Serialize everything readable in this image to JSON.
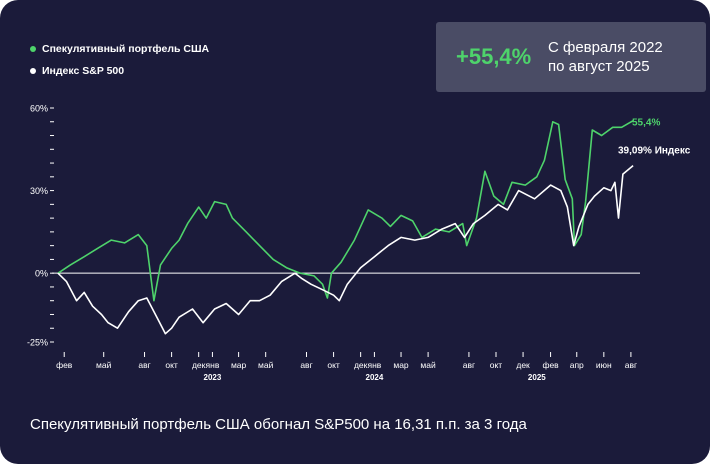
{
  "colors": {
    "background": "#1b1b3a",
    "portfolio": "#4ed36b",
    "index": "#ffffff",
    "stat_box": "#4a4c65",
    "zero_line": "#ffffff"
  },
  "legend": [
    {
      "label": "Спекулятивный портфель США",
      "color": "#4ed36b"
    },
    {
      "label": "Индекс S&P 500",
      "color": "#ffffff"
    }
  ],
  "stat": {
    "value": "+55,4%",
    "period_line1": "С февраля 2022",
    "period_line2": "по август 2025"
  },
  "end_labels": {
    "portfolio": "55,4%",
    "index": "39,09% Индекс"
  },
  "footer": "Спекулятивный портфель США обогнал S&P500 на 16,31 п.п. за 3 года",
  "chart_data": {
    "type": "line",
    "y_ticks": [
      "60%",
      "30%",
      "0%",
      "-25%"
    ],
    "y_tick_values": [
      60,
      30,
      0,
      -25
    ],
    "ylim": [
      -25,
      60
    ],
    "x_ticks": [
      "фев",
      "май",
      "авг",
      "окт",
      "дек",
      "янв",
      "мар",
      "май",
      "авг",
      "окт",
      "дек",
      "янв",
      "мар",
      "май",
      "авг",
      "окт",
      "дек",
      "фев",
      "апр",
      "июн",
      "авг"
    ],
    "x_tick_dates": [
      "2022-02",
      "2022-05",
      "2022-08",
      "2022-10",
      "2022-12",
      "2023-01",
      "2023-03",
      "2023-05",
      "2023-08",
      "2023-10",
      "2023-12",
      "2024-01",
      "2024-03",
      "2024-05",
      "2024-08",
      "2024-10",
      "2024-12",
      "2025-02",
      "2025-04",
      "2025-06",
      "2025-08"
    ],
    "year_labels": [
      {
        "label": "2023",
        "date": "2023-01"
      },
      {
        "label": "2024",
        "date": "2024-01"
      },
      {
        "label": "2025",
        "date": "2025-01"
      }
    ],
    "series": [
      {
        "name": "Спекулятивный портфель США",
        "color": "#4ed36b",
        "points": [
          [
            "2022-02-01",
            0
          ],
          [
            "2022-03-01",
            3
          ],
          [
            "2022-04-01",
            6
          ],
          [
            "2022-05-01",
            9
          ],
          [
            "2022-06-01",
            12
          ],
          [
            "2022-07-01",
            11
          ],
          [
            "2022-08-01",
            14
          ],
          [
            "2022-08-20",
            10
          ],
          [
            "2022-09-05",
            -10
          ],
          [
            "2022-09-20",
            3
          ],
          [
            "2022-10-15",
            9
          ],
          [
            "2022-11-01",
            12
          ],
          [
            "2022-11-20",
            18
          ],
          [
            "2022-12-15",
            24
          ],
          [
            "2023-01-01",
            20
          ],
          [
            "2023-01-20",
            26
          ],
          [
            "2023-02-15",
            25
          ],
          [
            "2023-03-01",
            20
          ],
          [
            "2023-04-01",
            15
          ],
          [
            "2023-05-01",
            10
          ],
          [
            "2023-06-01",
            5
          ],
          [
            "2023-07-01",
            2
          ],
          [
            "2023-08-01",
            0
          ],
          [
            "2023-09-01",
            -1
          ],
          [
            "2023-09-20",
            -4
          ],
          [
            "2023-10-01",
            -9
          ],
          [
            "2023-10-10",
            0
          ],
          [
            "2023-11-01",
            4
          ],
          [
            "2023-12-01",
            12
          ],
          [
            "2024-01-01",
            23
          ],
          [
            "2024-02-01",
            20
          ],
          [
            "2024-02-20",
            17
          ],
          [
            "2024-03-15",
            21
          ],
          [
            "2024-04-10",
            19
          ],
          [
            "2024-05-01",
            13
          ],
          [
            "2024-06-01",
            16
          ],
          [
            "2024-07-01",
            15
          ],
          [
            "2024-08-01",
            18
          ],
          [
            "2024-08-10",
            10
          ],
          [
            "2024-09-01",
            20
          ],
          [
            "2024-09-20",
            37
          ],
          [
            "2024-10-10",
            28
          ],
          [
            "2024-11-01",
            25
          ],
          [
            "2024-11-20",
            33
          ],
          [
            "2024-12-20",
            32
          ],
          [
            "2025-01-15",
            35
          ],
          [
            "2025-02-01",
            41
          ],
          [
            "2025-02-20",
            55
          ],
          [
            "2025-03-05",
            54
          ],
          [
            "2025-03-20",
            34
          ],
          [
            "2025-04-05",
            27
          ],
          [
            "2025-04-10",
            10
          ],
          [
            "2025-04-25",
            14
          ],
          [
            "2025-05-05",
            26
          ],
          [
            "2025-05-20",
            52
          ],
          [
            "2025-06-10",
            50
          ],
          [
            "2025-07-05",
            53
          ],
          [
            "2025-07-25",
            53
          ],
          [
            "2025-08-20",
            55.4
          ]
        ]
      },
      {
        "name": "Индекс S&P 500",
        "color": "#ffffff",
        "points": [
          [
            "2022-02-01",
            0
          ],
          [
            "2022-02-20",
            -3
          ],
          [
            "2022-03-15",
            -10
          ],
          [
            "2022-04-01",
            -7
          ],
          [
            "2022-04-20",
            -12
          ],
          [
            "2022-05-10",
            -15
          ],
          [
            "2022-05-25",
            -18
          ],
          [
            "2022-06-15",
            -20
          ],
          [
            "2022-07-10",
            -14
          ],
          [
            "2022-08-01",
            -10
          ],
          [
            "2022-08-20",
            -9
          ],
          [
            "2022-09-15",
            -17
          ],
          [
            "2022-10-01",
            -22
          ],
          [
            "2022-10-15",
            -20
          ],
          [
            "2022-11-01",
            -16
          ],
          [
            "2022-12-01",
            -13
          ],
          [
            "2022-12-25",
            -18
          ],
          [
            "2023-01-20",
            -13
          ],
          [
            "2023-02-15",
            -11
          ],
          [
            "2023-03-15",
            -15
          ],
          [
            "2023-04-10",
            -10
          ],
          [
            "2023-05-01",
            -10
          ],
          [
            "2023-05-25",
            -8
          ],
          [
            "2023-06-20",
            -3
          ],
          [
            "2023-07-20",
            0
          ],
          [
            "2023-08-05",
            -2
          ],
          [
            "2023-08-25",
            -4
          ],
          [
            "2023-09-20",
            -6
          ],
          [
            "2023-10-15",
            -8
          ],
          [
            "2023-10-28",
            -10
          ],
          [
            "2023-11-15",
            -4
          ],
          [
            "2023-12-15",
            2
          ],
          [
            "2024-01-15",
            6
          ],
          [
            "2024-02-15",
            10
          ],
          [
            "2024-03-15",
            13
          ],
          [
            "2024-04-15",
            12
          ],
          [
            "2024-05-15",
            13
          ],
          [
            "2024-06-15",
            16
          ],
          [
            "2024-07-15",
            18
          ],
          [
            "2024-08-05",
            13
          ],
          [
            "2024-08-25",
            18
          ],
          [
            "2024-09-20",
            21
          ],
          [
            "2024-10-20",
            25
          ],
          [
            "2024-11-10",
            23
          ],
          [
            "2024-12-05",
            30
          ],
          [
            "2025-01-10",
            27
          ],
          [
            "2025-02-15",
            32
          ],
          [
            "2025-03-10",
            30
          ],
          [
            "2025-03-25",
            24
          ],
          [
            "2025-04-08",
            10
          ],
          [
            "2025-04-20",
            17
          ],
          [
            "2025-05-10",
            25
          ],
          [
            "2025-05-25",
            28
          ],
          [
            "2025-06-15",
            31
          ],
          [
            "2025-07-01",
            30
          ],
          [
            "2025-07-10",
            33
          ],
          [
            "2025-07-18",
            20
          ],
          [
            "2025-07-28",
            36
          ],
          [
            "2025-08-20",
            39.09
          ]
        ]
      }
    ]
  }
}
